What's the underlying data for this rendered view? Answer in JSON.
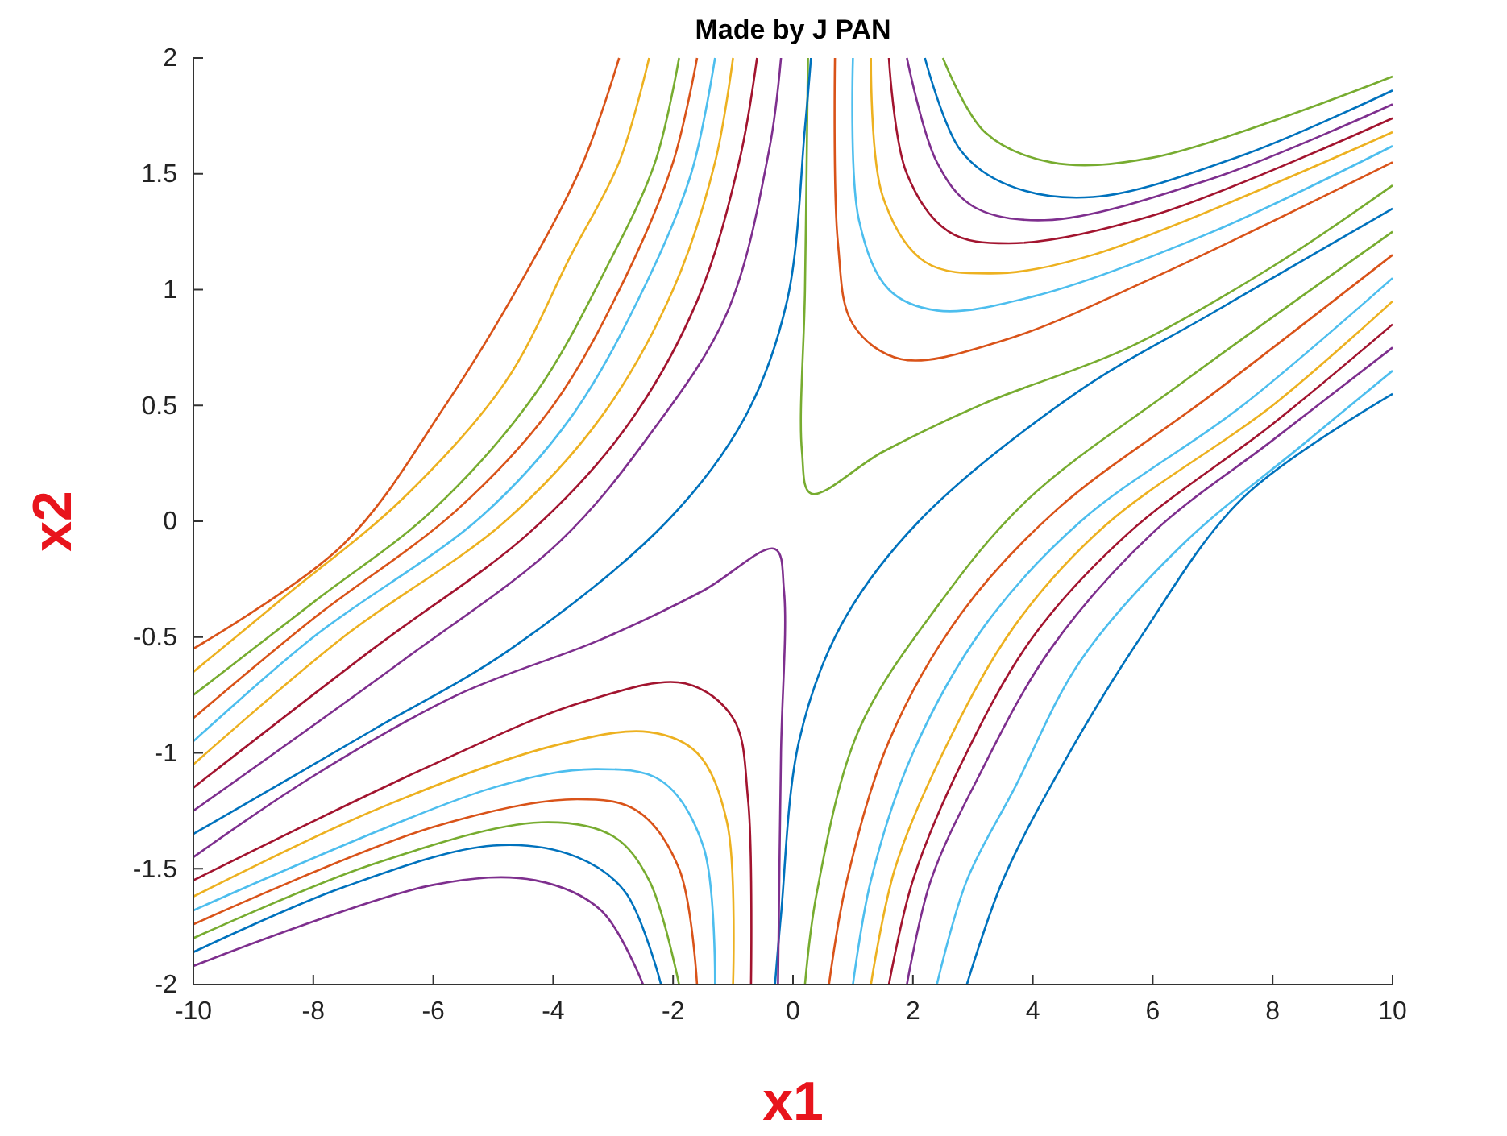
{
  "chart_data": {
    "type": "line",
    "title": "Made by J PAN",
    "xlabel": "x1",
    "ylabel": "x2",
    "xlim": [
      -10,
      10
    ],
    "ylim": [
      -2,
      2
    ],
    "xticks": [
      -10,
      -8,
      -6,
      -4,
      -2,
      0,
      2,
      4,
      6,
      8,
      10
    ],
    "yticks": [
      -2,
      -1.5,
      -1,
      -0.5,
      0,
      0.5,
      1,
      1.5,
      2
    ],
    "grid": false,
    "series": [
      {
        "color": "#77ac30",
        "x": [
          0.25,
          0.2,
          0.15,
          0.3,
          1.5,
          3.2,
          5.6,
          8,
          10
        ],
        "values": [
          2,
          1.0,
          0.3,
          0.12,
          0.3,
          0.51,
          0.75,
          1.1,
          1.45
        ]
      },
      {
        "color": "#d95319",
        "x": [
          0.7,
          0.75,
          1.0,
          1.8,
          3.5,
          6,
          10
        ],
        "values": [
          2,
          1.2,
          0.85,
          0.7,
          0.78,
          1.05,
          1.55
        ]
      },
      {
        "color": "#4dbeee",
        "x": [
          1.0,
          1.1,
          1.6,
          2.4,
          4,
          7,
          10
        ],
        "values": [
          2,
          1.3,
          1.0,
          0.91,
          0.97,
          1.25,
          1.62
        ]
      },
      {
        "color": "#edb120",
        "x": [
          1.3,
          1.5,
          2.2,
          3.3,
          5,
          10
        ],
        "values": [
          2,
          1.4,
          1.12,
          1.07,
          1.15,
          1.68
        ]
      },
      {
        "color": "#a2142f",
        "x": [
          1.6,
          1.9,
          2.6,
          3.6,
          6,
          10
        ],
        "values": [
          2,
          1.5,
          1.25,
          1.2,
          1.32,
          1.74
        ]
      },
      {
        "color": "#7e2f8e",
        "x": [
          1.9,
          2.4,
          3,
          4.2,
          7,
          10
        ],
        "values": [
          2,
          1.55,
          1.36,
          1.3,
          1.48,
          1.8
        ]
      },
      {
        "color": "#0072bd",
        "x": [
          2.2,
          2.8,
          3.6,
          5,
          7.5,
          10
        ],
        "values": [
          2,
          1.6,
          1.45,
          1.4,
          1.58,
          1.86
        ]
      },
      {
        "color": "#77ac30",
        "x": [
          2.5,
          3.2,
          4.3,
          6,
          10
        ],
        "values": [
          2,
          1.68,
          1.55,
          1.57,
          1.92
        ]
      },
      {
        "color": "#0072bd",
        "x": [
          -0.3,
          -0.2,
          0.1,
          0.8,
          2.1,
          4.7,
          7,
          10
        ],
        "values": [
          -2,
          -1.7,
          -0.95,
          -0.45,
          0,
          0.55,
          0.9,
          1.35
        ]
      },
      {
        "color": "#77ac30",
        "x": [
          0.2,
          0.4,
          1.1,
          2.4,
          3.9,
          6.5,
          10
        ],
        "values": [
          -2,
          -1.6,
          -0.9,
          -0.37,
          0.09,
          0.6,
          1.25
        ]
      },
      {
        "color": "#d95319",
        "x": [
          0.6,
          0.9,
          1.6,
          2.8,
          4.4,
          7,
          10
        ],
        "values": [
          -2,
          -1.55,
          -0.95,
          -0.4,
          0.05,
          0.55,
          1.15
        ]
      },
      {
        "color": "#4dbeee",
        "x": [
          1.0,
          1.3,
          2.0,
          3.2,
          4.8,
          7.5,
          10
        ],
        "values": [
          -2,
          -1.55,
          -1.0,
          -0.45,
          0,
          0.5,
          1.05
        ]
      },
      {
        "color": "#edb120",
        "x": [
          1.3,
          1.7,
          2.5,
          3.7,
          5.2,
          8,
          10
        ],
        "values": [
          -2,
          -1.5,
          -1.0,
          -0.45,
          -0.02,
          0.5,
          0.95
        ]
      },
      {
        "color": "#a2142f",
        "x": [
          1.6,
          2.0,
          2.8,
          4.0,
          5.6,
          8,
          10
        ],
        "values": [
          -2,
          -1.55,
          -1.05,
          -0.5,
          -0.05,
          0.42,
          0.85
        ]
      },
      {
        "color": "#7e2f8e",
        "x": [
          1.9,
          2.3,
          3.1,
          4.3,
          6.0,
          8,
          10
        ],
        "values": [
          -2,
          -1.55,
          -1.1,
          -0.55,
          -0.05,
          0.35,
          0.75
        ]
      },
      {
        "color": "#4dbeee",
        "x": [
          2.4,
          2.9,
          3.7,
          4.8,
          6.5,
          8.5,
          10
        ],
        "values": [
          -2,
          -1.55,
          -1.15,
          -0.6,
          -0.1,
          0.33,
          0.65
        ]
      },
      {
        "color": "#0072bd",
        "x": [
          2.9,
          3.5,
          4.5,
          5.8,
          7.5,
          10
        ],
        "values": [
          -2,
          -1.55,
          -1.05,
          -0.5,
          0.1,
          0.55
        ]
      },
      {
        "color": "#7e2f8e",
        "x": [
          -0.25,
          -0.2,
          -0.15,
          -0.3,
          -1.5,
          -3.2,
          -5.6,
          -8,
          -10
        ],
        "values": [
          -2,
          -1.0,
          -0.3,
          -0.12,
          -0.3,
          -0.51,
          -0.75,
          -1.1,
          -1.45
        ]
      },
      {
        "color": "#a2142f",
        "x": [
          -0.7,
          -0.75,
          -1.0,
          -1.8,
          -3.5,
          -6,
          -10
        ],
        "values": [
          -2,
          -1.2,
          -0.85,
          -0.7,
          -0.78,
          -1.05,
          -1.55
        ]
      },
      {
        "color": "#edb120",
        "x": [
          -1.0,
          -1.1,
          -1.6,
          -2.4,
          -4,
          -7,
          -10
        ],
        "values": [
          -2,
          -1.3,
          -1.0,
          -0.91,
          -0.97,
          -1.25,
          -1.62
        ]
      },
      {
        "color": "#4dbeee",
        "x": [
          -1.3,
          -1.5,
          -2.2,
          -3.3,
          -5,
          -10
        ],
        "values": [
          -2,
          -1.4,
          -1.12,
          -1.07,
          -1.15,
          -1.68
        ]
      },
      {
        "color": "#d95319",
        "x": [
          -1.6,
          -1.9,
          -2.6,
          -3.6,
          -6,
          -10
        ],
        "values": [
          -2,
          -1.5,
          -1.25,
          -1.2,
          -1.32,
          -1.74
        ]
      },
      {
        "color": "#77ac30",
        "x": [
          -1.9,
          -2.4,
          -3,
          -4.2,
          -7,
          -10
        ],
        "values": [
          -2,
          -1.55,
          -1.36,
          -1.3,
          -1.48,
          -1.8
        ]
      },
      {
        "color": "#0072bd",
        "x": [
          -2.2,
          -2.8,
          -3.6,
          -5,
          -7.5,
          -10
        ],
        "values": [
          -2,
          -1.6,
          -1.45,
          -1.4,
          -1.58,
          -1.86
        ]
      },
      {
        "color": "#7e2f8e",
        "x": [
          -2.5,
          -3.2,
          -4.3,
          -6,
          -10
        ],
        "values": [
          -2,
          -1.68,
          -1.55,
          -1.57,
          -1.92
        ]
      },
      {
        "color": "#0072bd",
        "x": [
          0.3,
          0.2,
          -0.1,
          -0.8,
          -2.1,
          -4.7,
          -7,
          -10
        ],
        "values": [
          2,
          1.7,
          0.95,
          0.45,
          0,
          -0.55,
          -0.9,
          -1.35
        ]
      },
      {
        "color": "#7e2f8e",
        "x": [
          -0.2,
          -0.4,
          -1.1,
          -2.4,
          -3.9,
          -6.5,
          -10
        ],
        "values": [
          2,
          1.6,
          0.9,
          0.37,
          -0.09,
          -0.6,
          -1.25
        ]
      },
      {
        "color": "#a2142f",
        "x": [
          -0.6,
          -0.9,
          -1.6,
          -2.8,
          -4.4,
          -7,
          -10
        ],
        "values": [
          2,
          1.55,
          0.95,
          0.4,
          -0.05,
          -0.55,
          -1.15
        ]
      },
      {
        "color": "#edb120",
        "x": [
          -1.0,
          -1.3,
          -2.0,
          -3.2,
          -4.8,
          -7.5,
          -10
        ],
        "values": [
          2,
          1.55,
          1.0,
          0.45,
          0,
          -0.5,
          -1.05
        ]
      },
      {
        "color": "#4dbeee",
        "x": [
          -1.3,
          -1.7,
          -2.5,
          -3.7,
          -5.2,
          -8,
          -10
        ],
        "values": [
          2,
          1.5,
          1.0,
          0.45,
          0.02,
          -0.5,
          -0.95
        ]
      },
      {
        "color": "#d95319",
        "x": [
          -1.6,
          -2.0,
          -2.8,
          -4.0,
          -5.6,
          -8,
          -10
        ],
        "values": [
          2,
          1.55,
          1.05,
          0.5,
          0.05,
          -0.42,
          -0.85
        ]
      },
      {
        "color": "#77ac30",
        "x": [
          -1.9,
          -2.3,
          -3.1,
          -4.3,
          -6.0,
          -8,
          -10
        ],
        "values": [
          2,
          1.55,
          1.1,
          0.55,
          0.05,
          -0.35,
          -0.75
        ]
      },
      {
        "color": "#edb120",
        "x": [
          -2.4,
          -2.9,
          -3.7,
          -4.8,
          -6.5,
          -8.5,
          -10
        ],
        "values": [
          2,
          1.55,
          1.15,
          0.6,
          0.1,
          -0.33,
          -0.65
        ]
      },
      {
        "color": "#d95319",
        "x": [
          -2.9,
          -3.5,
          -4.5,
          -5.8,
          -7.5,
          -10
        ],
        "values": [
          2,
          1.55,
          1.05,
          0.5,
          -0.1,
          -0.55
        ]
      }
    ]
  }
}
